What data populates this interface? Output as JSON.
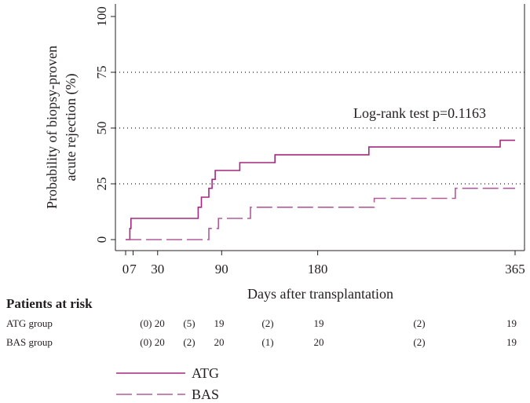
{
  "chart_data": {
    "type": "line",
    "step": true,
    "xlabel": "Days after transplantation",
    "ylabel_lines": [
      "Probability of biopsy-proven",
      "acute rejection (%)"
    ],
    "xlim": [
      0,
      365
    ],
    "ylim": [
      0,
      100
    ],
    "x_ticks": [
      0,
      7,
      30,
      90,
      180,
      365
    ],
    "x_tick_labels": [
      "0",
      "7",
      "30",
      "90",
      "180",
      "365"
    ],
    "y_ticks": [
      0,
      25,
      50,
      75,
      100
    ],
    "y_tick_labels": [
      "0",
      "25",
      "50",
      "75",
      "100"
    ],
    "grid": "horizontal dotted at 25, 50, 75",
    "annotation": "Log-rank test p=0.1163",
    "series": [
      {
        "name": "ATG",
        "color": "#a3287f",
        "dash": "solid",
        "points": [
          [
            0,
            0
          ],
          [
            4,
            0
          ],
          [
            4,
            5
          ],
          [
            5,
            5
          ],
          [
            5,
            9.5
          ],
          [
            68,
            9.5
          ],
          [
            68,
            14.5
          ],
          [
            71,
            14.5
          ],
          [
            71,
            19
          ],
          [
            78,
            19
          ],
          [
            78,
            23
          ],
          [
            81,
            23
          ],
          [
            81,
            27
          ],
          [
            84,
            27
          ],
          [
            84,
            31
          ],
          [
            107,
            31
          ],
          [
            107,
            34.5
          ],
          [
            140,
            34.5
          ],
          [
            140,
            38
          ],
          [
            228,
            38
          ],
          [
            228,
            41.5
          ],
          [
            351,
            41.5
          ],
          [
            351,
            44.5
          ],
          [
            365,
            44.5
          ]
        ]
      },
      {
        "name": "BAS",
        "color": "#b15b9b",
        "dash": "dashed",
        "points": [
          [
            0,
            0
          ],
          [
            78,
            0
          ],
          [
            78,
            5
          ],
          [
            87,
            5
          ],
          [
            87,
            9.5
          ],
          [
            117,
            9.5
          ],
          [
            117,
            14.5
          ],
          [
            233,
            14.5
          ],
          [
            233,
            18.5
          ],
          [
            309,
            18.5
          ],
          [
            309,
            23
          ],
          [
            365,
            23
          ]
        ]
      }
    ]
  },
  "risk_table": {
    "title": "Patients at risk",
    "rows": [
      {
        "label": "ATG group",
        "cells": [
          "(0) 20",
          "(5)",
          "19",
          "(2)",
          "19",
          "(2)",
          "19"
        ]
      },
      {
        "label": "BAS group",
        "cells": [
          "(0) 20",
          "(2)",
          "20",
          "(1)",
          "20",
          "(2)",
          "19"
        ]
      }
    ]
  },
  "legend": [
    {
      "label": "ATG",
      "dash": "solid",
      "color": "#a3287f"
    },
    {
      "label": "BAS",
      "dash": "dashed",
      "color": "#b15b9b"
    }
  ]
}
